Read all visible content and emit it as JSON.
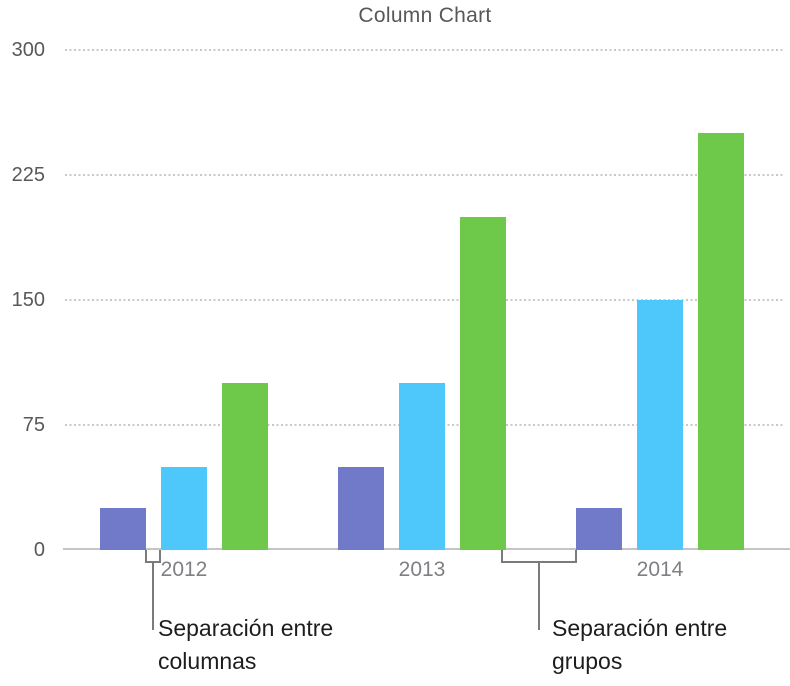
{
  "chart_data": {
    "type": "bar",
    "title": "Column Chart",
    "categories": [
      "2012",
      "2013",
      "2014"
    ],
    "series": [
      {
        "name": "purple-series",
        "color": "#717AC8",
        "values": [
          25,
          50,
          25
        ]
      },
      {
        "name": "cyan-series",
        "color": "#4EC8FA",
        "values": [
          50,
          100,
          150
        ]
      },
      {
        "name": "green-series",
        "color": "#6EC94B",
        "values": [
          100,
          200,
          250
        ]
      }
    ],
    "y_ticks": [
      0,
      75,
      150,
      225,
      300
    ],
    "ylim": [
      0,
      300
    ],
    "xlabel": "",
    "ylabel": "",
    "grid": "horizontal-dotted",
    "legend": "none"
  },
  "annotations": [
    {
      "id": "column-gap",
      "line1": "Separación entre",
      "line2": "columnas"
    },
    {
      "id": "group-gap",
      "line1": "Separación entre",
      "line2": "grupos"
    }
  ],
  "colors": {
    "gridline": "#c9c9ca",
    "axis_line": "#c5c5c7",
    "title_text": "#58585a",
    "tick_text": "#58585a",
    "category_text": "#808084",
    "annotation_text": "#1d1d1f",
    "bracket": "#7b7b7d",
    "background": "#ffffff"
  }
}
